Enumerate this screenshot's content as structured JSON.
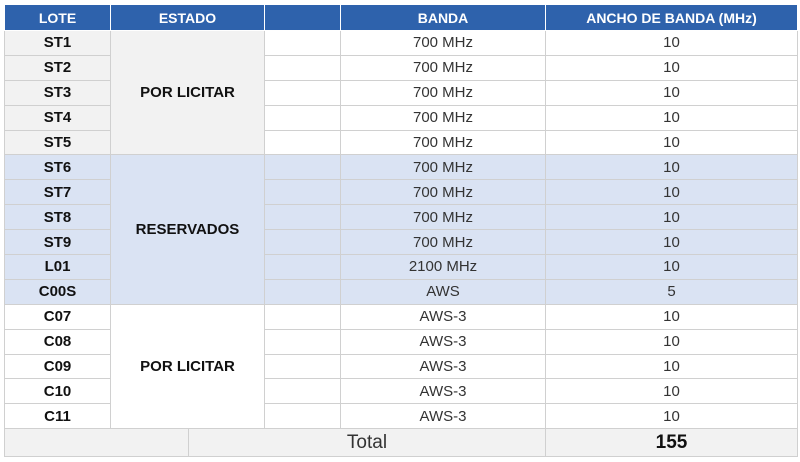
{
  "table": {
    "headers": [
      "LOTE",
      "ESTADO",
      "BANDA",
      "ANCHO DE BANDA (MHz)"
    ],
    "groups": [
      {
        "estado": "POR LICITAR",
        "rows": [
          {
            "lote": "ST1",
            "banda": "700 MHz",
            "ancho": 10
          },
          {
            "lote": "ST2",
            "banda": "700 MHz",
            "ancho": 10
          },
          {
            "lote": "ST3",
            "banda": "700 MHz",
            "ancho": 10
          },
          {
            "lote": "ST4",
            "banda": "700 MHz",
            "ancho": 10
          },
          {
            "lote": "ST5",
            "banda": "700 MHz",
            "ancho": 10
          }
        ]
      },
      {
        "estado": "RESERVADOS",
        "rows": [
          {
            "lote": "ST6",
            "banda": "700 MHz",
            "ancho": 10
          },
          {
            "lote": "ST7",
            "banda": "700 MHz",
            "ancho": 10
          },
          {
            "lote": "ST8",
            "banda": "700 MHz",
            "ancho": 10
          },
          {
            "lote": "ST9",
            "banda": "700 MHz",
            "ancho": 10
          },
          {
            "lote": "L01",
            "banda": "2100 MHz",
            "ancho": 10
          },
          {
            "lote": "C00S",
            "banda": "AWS",
            "ancho": 5
          }
        ]
      },
      {
        "estado": "POR LICITAR",
        "rows": [
          {
            "lote": "C07",
            "banda": "AWS-3",
            "ancho": 10
          },
          {
            "lote": "C08",
            "banda": "AWS-3",
            "ancho": 10
          },
          {
            "lote": "C09",
            "banda": "AWS-3",
            "ancho": 10
          },
          {
            "lote": "C10",
            "banda": "AWS-3",
            "ancho": 10
          },
          {
            "lote": "C11",
            "banda": "AWS-3",
            "ancho": 10
          }
        ]
      }
    ],
    "total": {
      "label": "Total",
      "value": 155
    }
  }
}
